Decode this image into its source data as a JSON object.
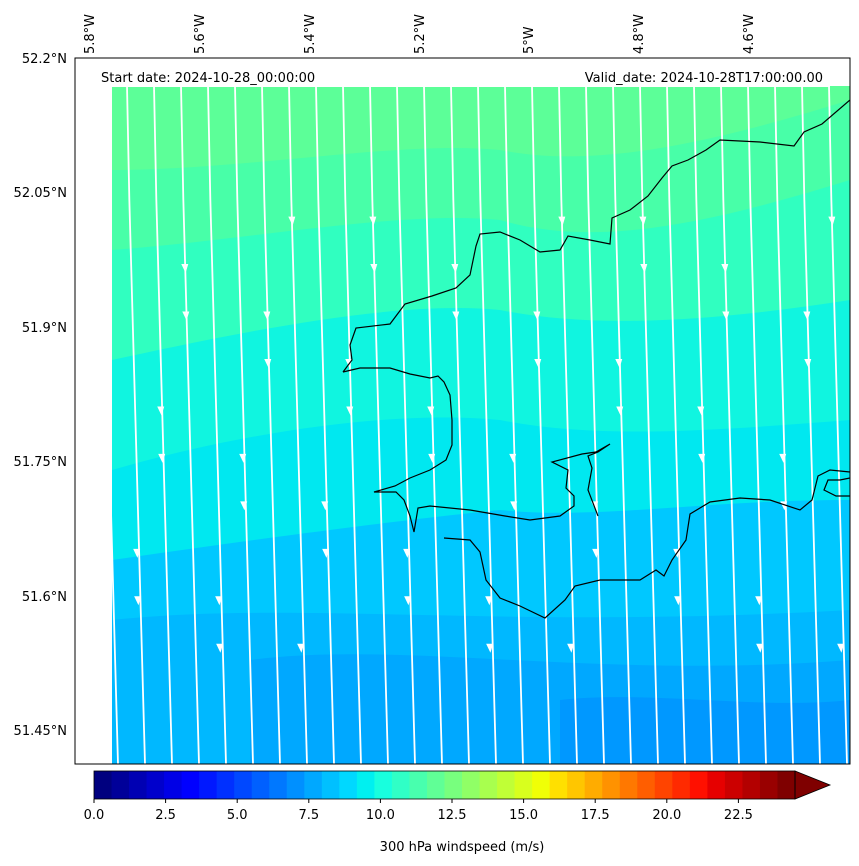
{
  "map": {
    "start_label": "Start date: 2024-10-28_00:00:00",
    "valid_label": "Valid_date: 2024-10-28T17:00:00.00",
    "lon_labels": [
      "5.8°W",
      "5.6°W",
      "5.4°W",
      "5.2°W",
      "5°W",
      "4.8°W",
      "4.6°W"
    ],
    "lat_labels": [
      "52.2°N",
      "52.05°N",
      "51.9°N",
      "51.75°N",
      "51.6°N",
      "51.45°N"
    ],
    "field_colors": [
      "#00c8ff",
      "#00e0ff",
      "#00f0f0",
      "#20ffd0",
      "#40ffb0",
      "#60ff90",
      "#00a8ff"
    ]
  },
  "colorbar": {
    "label": "300 hPa windspeed (m/s)",
    "ticks": [
      "0.0",
      "2.5",
      "5.0",
      "7.5",
      "10.0",
      "12.5",
      "15.0",
      "17.5",
      "20.0",
      "22.5"
    ],
    "colors": [
      "#00007f",
      "#000099",
      "#0000b3",
      "#0000cc",
      "#0000e6",
      "#0000ff",
      "#0018ff",
      "#0030ff",
      "#0048ff",
      "#0060ff",
      "#0078ff",
      "#0090ff",
      "#00a8ff",
      "#00c0ff",
      "#00d8ff",
      "#00f0f0",
      "#18ffde",
      "#30ffc6",
      "#48ffae",
      "#60ff96",
      "#78ff7e",
      "#90ff66",
      "#a8ff4e",
      "#c0ff36",
      "#d8ff1e",
      "#f0ff06",
      "#ffe000",
      "#ffc600",
      "#ffac00",
      "#ff9200",
      "#ff7800",
      "#ff5e00",
      "#ff4400",
      "#ff2a00",
      "#ff1000",
      "#e60000",
      "#cc0000",
      "#b30000",
      "#990000",
      "#7f0000"
    ]
  }
}
